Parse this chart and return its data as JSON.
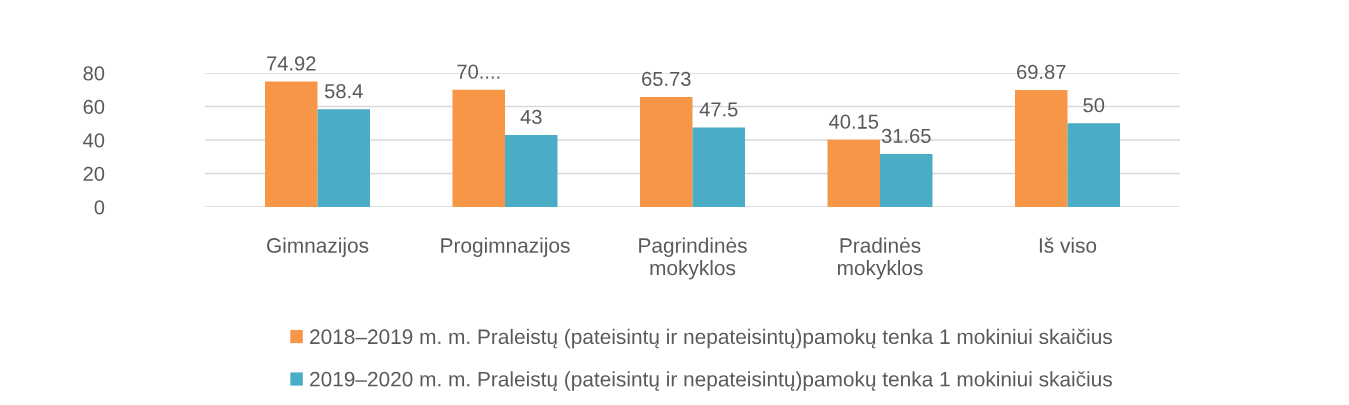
{
  "chart_data": {
    "type": "bar",
    "categories": [
      "Gimnazijos",
      "Progimnazijos",
      "Pagrindinės mokyklos",
      "Pradinės mokyklos",
      "Iš viso"
    ],
    "series": [
      {
        "name": "2018–2019 m. m. Praleistų (pateisintų ir nepateisintų)pamokų tenka 1 mokiniui skaičius",
        "color": "#f79646",
        "values": [
          74.92,
          70,
          65.73,
          40.15,
          69.87
        ],
        "value_labels": [
          "74.92",
          "70....",
          "65.73",
          "40.15",
          "69.87"
        ]
      },
      {
        "name": "2019–2020 m. m. Praleistų (pateisintų ir nepateisintų)pamokų tenka 1 mokiniui skaičius",
        "color": "#4bacc6",
        "values": [
          58.4,
          43,
          47.5,
          31.65,
          50
        ],
        "value_labels": [
          "58.4",
          "43",
          "47.5",
          "31.65",
          "50"
        ]
      }
    ],
    "ylim": [
      0,
      80
    ],
    "yticks": [
      0,
      20,
      40,
      60,
      80
    ],
    "grid": "y",
    "legend": "bottom"
  }
}
